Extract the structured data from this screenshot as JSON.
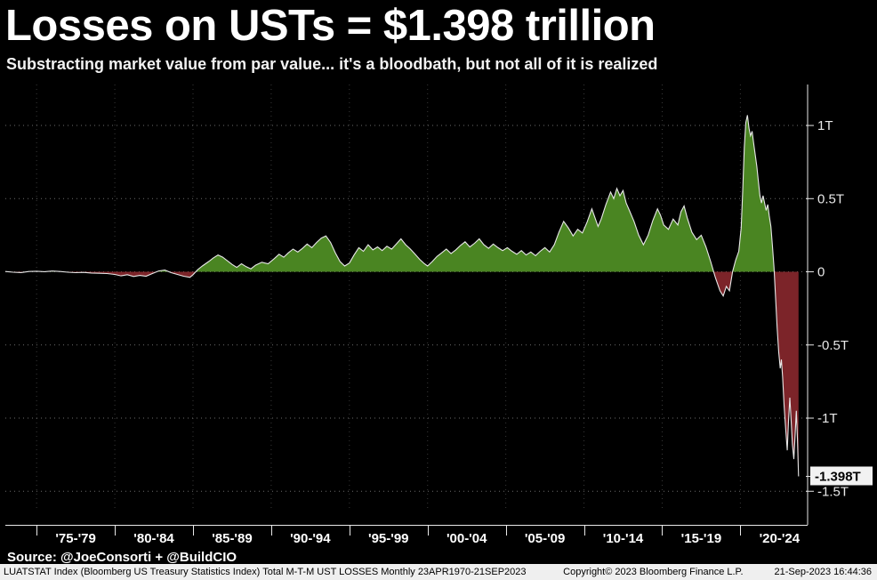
{
  "title": "Losses on USTs = $1.398 trillion",
  "subtitle": "Substracting market value from par value... it's a bloodbath, but not all of it is realized",
  "source_line": "Source: @JoeConsorti + @BuildCIO",
  "footer": {
    "left": "LUATSTAT Index (Bloomberg US Treasury Statistics Index) Total M-T-M UST LOSSES  Monthly 23APR1970-21SEP2023",
    "copyright": "Copyright© 2023 Bloomberg Finance L.P.",
    "timestamp": "21-Sep-2023 16:44:36"
  },
  "colors": {
    "background": "#000000",
    "positive_fill": "#4a8522",
    "negative_fill": "#7c2429",
    "line": "#e8e8e8",
    "grid": "rgba(215,215,215,0.5)",
    "v_grid": "rgba(190,190,190,0.3)",
    "axis": "#e8e8e8",
    "label_box_bg": "#f2f2f2",
    "label_box_text": "#000000"
  },
  "chart_data": {
    "type": "area",
    "title": "Losses on USTs = $1.398 trillion",
    "subtitle": "Substracting market value from par value... it's a bloodbath, but not all of it is realized",
    "series_name": "Total M-T-M UST LOSSES (LUATSTAT Index, Monthly, 23APR1970-21SEP2023)",
    "x_unit": "decimal_year",
    "y_unit": "trillion USD",
    "xlim": [
      1973,
      2024.3
    ],
    "ylim": [
      -1.62,
      1.28
    ],
    "grid": true,
    "last_point_label": "-1.398T",
    "last_point_value": -1.398,
    "y_ticks": [
      {
        "v": 1,
        "label": "1T"
      },
      {
        "v": 0.5,
        "label": "0.5T"
      },
      {
        "v": 0,
        "label": "0"
      },
      {
        "v": -0.5,
        "label": "-0.5T"
      },
      {
        "v": -1,
        "label": "-1T"
      },
      {
        "v": -1.5,
        "label": "-1.5T"
      }
    ],
    "x_dividers": [
      1975,
      1980,
      1985,
      1990,
      1995,
      2000,
      2005,
      2010,
      2015,
      2020
    ],
    "x_labels": [
      {
        "label": "'75-'79",
        "center": 1977.5
      },
      {
        "label": "'80-'84",
        "center": 1982.5
      },
      {
        "label": "'85-'89",
        "center": 1987.5
      },
      {
        "label": "'90-'94",
        "center": 1992.5
      },
      {
        "label": "'95-'99",
        "center": 1997.5
      },
      {
        "label": "'00-'04",
        "center": 2002.5
      },
      {
        "label": "'05-'09",
        "center": 2007.5
      },
      {
        "label": "'10-'14",
        "center": 2012.5
      },
      {
        "label": "'15-'19",
        "center": 2017.5
      },
      {
        "label": "'20-'24",
        "center": 2022.5
      }
    ],
    "points": [
      [
        1973,
        0.002
      ],
      [
        1973.5,
        -0.003
      ],
      [
        1974,
        -0.005
      ],
      [
        1974.5,
        0.002
      ],
      [
        1975,
        0.004
      ],
      [
        1975.5,
        0.001
      ],
      [
        1976,
        0.005
      ],
      [
        1976.5,
        0.002
      ],
      [
        1977,
        -0.003
      ],
      [
        1977.5,
        -0.006
      ],
      [
        1978,
        -0.004
      ],
      [
        1978.5,
        -0.008
      ],
      [
        1979,
        -0.01
      ],
      [
        1979.5,
        -0.012
      ],
      [
        1980,
        -0.018
      ],
      [
        1980.4,
        -0.028
      ],
      [
        1980.8,
        -0.02
      ],
      [
        1981.2,
        -0.032
      ],
      [
        1981.6,
        -0.025
      ],
      [
        1982,
        -0.03
      ],
      [
        1982.4,
        -0.012
      ],
      [
        1982.8,
        0.006
      ],
      [
        1983.2,
        0.012
      ],
      [
        1983.6,
        -0.006
      ],
      [
        1984,
        -0.018
      ],
      [
        1984.4,
        -0.03
      ],
      [
        1984.8,
        -0.038
      ],
      [
        1985,
        -0.02
      ],
      [
        1985.3,
        0.015
      ],
      [
        1985.6,
        0.04
      ],
      [
        1986,
        0.07
      ],
      [
        1986.3,
        0.095
      ],
      [
        1986.6,
        0.115
      ],
      [
        1986.9,
        0.1
      ],
      [
        1987.2,
        0.075
      ],
      [
        1987.5,
        0.05
      ],
      [
        1987.8,
        0.03
      ],
      [
        1988.1,
        0.055
      ],
      [
        1988.4,
        0.035
      ],
      [
        1988.7,
        0.02
      ],
      [
        1989,
        0.045
      ],
      [
        1989.4,
        0.065
      ],
      [
        1989.8,
        0.055
      ],
      [
        1990.2,
        0.09
      ],
      [
        1990.5,
        0.12
      ],
      [
        1990.8,
        0.1
      ],
      [
        1991.1,
        0.13
      ],
      [
        1991.4,
        0.155
      ],
      [
        1991.7,
        0.135
      ],
      [
        1992,
        0.16
      ],
      [
        1992.3,
        0.19
      ],
      [
        1992.6,
        0.165
      ],
      [
        1992.9,
        0.2
      ],
      [
        1993.2,
        0.23
      ],
      [
        1993.5,
        0.245
      ],
      [
        1993.8,
        0.2
      ],
      [
        1994.1,
        0.13
      ],
      [
        1994.4,
        0.07
      ],
      [
        1994.7,
        0.04
      ],
      [
        1995,
        0.06
      ],
      [
        1995.3,
        0.115
      ],
      [
        1995.6,
        0.165
      ],
      [
        1995.9,
        0.14
      ],
      [
        1996.2,
        0.185
      ],
      [
        1996.5,
        0.15
      ],
      [
        1996.8,
        0.17
      ],
      [
        1997.1,
        0.145
      ],
      [
        1997.4,
        0.175
      ],
      [
        1997.7,
        0.155
      ],
      [
        1998,
        0.19
      ],
      [
        1998.3,
        0.225
      ],
      [
        1998.6,
        0.185
      ],
      [
        1998.9,
        0.155
      ],
      [
        1999.2,
        0.12
      ],
      [
        1999.5,
        0.085
      ],
      [
        1999.8,
        0.055
      ],
      [
        2000,
        0.04
      ],
      [
        2000.3,
        0.07
      ],
      [
        2000.6,
        0.105
      ],
      [
        2000.9,
        0.13
      ],
      [
        2001.2,
        0.155
      ],
      [
        2001.5,
        0.125
      ],
      [
        2001.8,
        0.15
      ],
      [
        2002.1,
        0.18
      ],
      [
        2002.4,
        0.205
      ],
      [
        2002.7,
        0.17
      ],
      [
        2003,
        0.195
      ],
      [
        2003.3,
        0.225
      ],
      [
        2003.6,
        0.185
      ],
      [
        2003.9,
        0.16
      ],
      [
        2004.2,
        0.19
      ],
      [
        2004.5,
        0.165
      ],
      [
        2004.8,
        0.145
      ],
      [
        2005.1,
        0.165
      ],
      [
        2005.4,
        0.14
      ],
      [
        2005.7,
        0.12
      ],
      [
        2006,
        0.145
      ],
      [
        2006.3,
        0.115
      ],
      [
        2006.6,
        0.135
      ],
      [
        2006.9,
        0.11
      ],
      [
        2007.2,
        0.14
      ],
      [
        2007.5,
        0.165
      ],
      [
        2007.8,
        0.135
      ],
      [
        2008.1,
        0.185
      ],
      [
        2008.4,
        0.27
      ],
      [
        2008.7,
        0.345
      ],
      [
        2009,
        0.3
      ],
      [
        2009.3,
        0.245
      ],
      [
        2009.6,
        0.29
      ],
      [
        2009.9,
        0.265
      ],
      [
        2010.2,
        0.34
      ],
      [
        2010.5,
        0.43
      ],
      [
        2010.7,
        0.37
      ],
      [
        2010.9,
        0.31
      ],
      [
        2011.1,
        0.36
      ],
      [
        2011.4,
        0.46
      ],
      [
        2011.7,
        0.545
      ],
      [
        2011.9,
        0.5
      ],
      [
        2012.1,
        0.57
      ],
      [
        2012.3,
        0.52
      ],
      [
        2012.5,
        0.555
      ],
      [
        2012.7,
        0.47
      ],
      [
        2012.9,
        0.42
      ],
      [
        2013.2,
        0.345
      ],
      [
        2013.5,
        0.25
      ],
      [
        2013.8,
        0.185
      ],
      [
        2014.1,
        0.25
      ],
      [
        2014.4,
        0.35
      ],
      [
        2014.7,
        0.43
      ],
      [
        2014.9,
        0.385
      ],
      [
        2015.1,
        0.32
      ],
      [
        2015.4,
        0.29
      ],
      [
        2015.7,
        0.36
      ],
      [
        2016,
        0.32
      ],
      [
        2016.2,
        0.41
      ],
      [
        2016.4,
        0.45
      ],
      [
        2016.6,
        0.37
      ],
      [
        2016.9,
        0.27
      ],
      [
        2017.2,
        0.22
      ],
      [
        2017.5,
        0.25
      ],
      [
        2017.8,
        0.17
      ],
      [
        2018.1,
        0.07
      ],
      [
        2018.4,
        -0.04
      ],
      [
        2018.7,
        -0.13
      ],
      [
        2018.9,
        -0.165
      ],
      [
        2019.1,
        -0.1
      ],
      [
        2019.3,
        -0.13
      ],
      [
        2019.5,
        0
      ],
      [
        2019.7,
        0.08
      ],
      [
        2019.9,
        0.14
      ],
      [
        2020.05,
        0.3
      ],
      [
        2020.15,
        0.55
      ],
      [
        2020.25,
        0.85
      ],
      [
        2020.35,
        1.02
      ],
      [
        2020.45,
        1.07
      ],
      [
        2020.55,
        0.98
      ],
      [
        2020.65,
        0.93
      ],
      [
        2020.75,
        0.96
      ],
      [
        2020.85,
        0.88
      ],
      [
        2020.95,
        0.8
      ],
      [
        2021.05,
        0.72
      ],
      [
        2021.15,
        0.62
      ],
      [
        2021.25,
        0.52
      ],
      [
        2021.35,
        0.47
      ],
      [
        2021.45,
        0.52
      ],
      [
        2021.55,
        0.47
      ],
      [
        2021.65,
        0.42
      ],
      [
        2021.75,
        0.46
      ],
      [
        2021.85,
        0.38
      ],
      [
        2021.95,
        0.31
      ],
      [
        2022.05,
        0.18
      ],
      [
        2022.15,
        0.03
      ],
      [
        2022.25,
        -0.18
      ],
      [
        2022.35,
        -0.38
      ],
      [
        2022.45,
        -0.55
      ],
      [
        2022.55,
        -0.66
      ],
      [
        2022.62,
        -0.6
      ],
      [
        2022.7,
        -0.72
      ],
      [
        2022.8,
        -0.92
      ],
      [
        2022.9,
        -1.08
      ],
      [
        2023,
        -1.22
      ],
      [
        2023.08,
        -1.02
      ],
      [
        2023.16,
        -0.86
      ],
      [
        2023.25,
        -1.02
      ],
      [
        2023.33,
        -1.18
      ],
      [
        2023.42,
        -1.28
      ],
      [
        2023.5,
        -1.12
      ],
      [
        2023.58,
        -0.95
      ],
      [
        2023.65,
        -1.15
      ],
      [
        2023.72,
        -1.398
      ]
    ]
  }
}
